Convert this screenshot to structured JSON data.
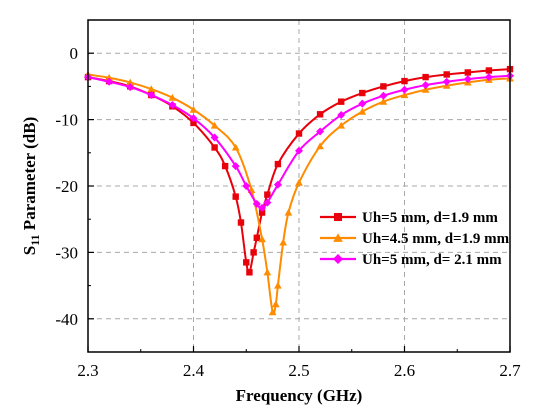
{
  "chart_data": {
    "type": "line",
    "xlabel": "Frequency (GHz)",
    "ylabel_prefix": "S",
    "ylabel_sub": "11",
    "ylabel_suffix": " Parameter (dB)",
    "xlim": [
      2.3,
      2.7
    ],
    "ylim": [
      -45,
      5
    ],
    "xticks": [
      2.3,
      2.4,
      2.5,
      2.6,
      2.7
    ],
    "xtick_labels": [
      "2.3",
      "2.4",
      "2.5",
      "2.6",
      "2.7"
    ],
    "yticks": [
      0,
      -10,
      -20,
      -30,
      -40
    ],
    "ytick_labels": [
      "0",
      "-10",
      "-20",
      "-30",
      "-40"
    ],
    "grid": true,
    "legend_position": "center-right",
    "series": [
      {
        "name": "Uh=5 mm, d=1.9 mm",
        "color": "#e8000b",
        "marker": "square",
        "x": [
          2.3,
          2.32,
          2.34,
          2.36,
          2.38,
          2.4,
          2.42,
          2.43,
          2.44,
          2.445,
          2.45,
          2.453,
          2.457,
          2.46,
          2.465,
          2.47,
          2.48,
          2.5,
          2.52,
          2.54,
          2.56,
          2.58,
          2.6,
          2.62,
          2.64,
          2.66,
          2.68,
          2.7
        ],
        "y": [
          -3.6,
          -4.2,
          -5.0,
          -6.3,
          -8.0,
          -10.5,
          -14.2,
          -17.0,
          -21.6,
          -25.5,
          -31.5,
          -33.0,
          -30.0,
          -27.8,
          -24.0,
          -21.3,
          -16.7,
          -12.1,
          -9.2,
          -7.3,
          -6.0,
          -5.0,
          -4.2,
          -3.6,
          -3.2,
          -2.9,
          -2.6,
          -2.4
        ]
      },
      {
        "name": "Uh=4.5 mm, d=1.9 mm",
        "color": "#ff8c00",
        "marker": "triangle",
        "x": [
          2.3,
          2.32,
          2.34,
          2.36,
          2.38,
          2.4,
          2.42,
          2.44,
          2.455,
          2.465,
          2.47,
          2.475,
          2.478,
          2.48,
          2.485,
          2.49,
          2.5,
          2.52,
          2.54,
          2.56,
          2.58,
          2.6,
          2.62,
          2.64,
          2.66,
          2.68,
          2.7
        ],
        "y": [
          -3.2,
          -3.7,
          -4.4,
          -5.4,
          -6.7,
          -8.5,
          -10.9,
          -14.2,
          -20.6,
          -28.0,
          -33.0,
          -39.0,
          -37.8,
          -35.0,
          -28.5,
          -24.0,
          -19.5,
          -14.0,
          -10.9,
          -8.8,
          -7.3,
          -6.3,
          -5.5,
          -4.9,
          -4.4,
          -4.0,
          -3.8
        ]
      },
      {
        "name": "Uh=5 mm, d= 2.1 mm",
        "color": "#ff00ff",
        "marker": "diamond",
        "x": [
          2.3,
          2.32,
          2.34,
          2.36,
          2.38,
          2.4,
          2.42,
          2.44,
          2.45,
          2.46,
          2.465,
          2.47,
          2.48,
          2.5,
          2.52,
          2.54,
          2.56,
          2.58,
          2.6,
          2.62,
          2.64,
          2.66,
          2.68,
          2.7
        ],
        "y": [
          -3.6,
          -4.3,
          -5.1,
          -6.3,
          -7.8,
          -9.8,
          -12.7,
          -17.0,
          -20.0,
          -22.7,
          -23.3,
          -22.5,
          -19.8,
          -14.7,
          -11.8,
          -9.3,
          -7.6,
          -6.4,
          -5.5,
          -4.8,
          -4.3,
          -3.9,
          -3.6,
          -3.4
        ]
      }
    ]
  }
}
